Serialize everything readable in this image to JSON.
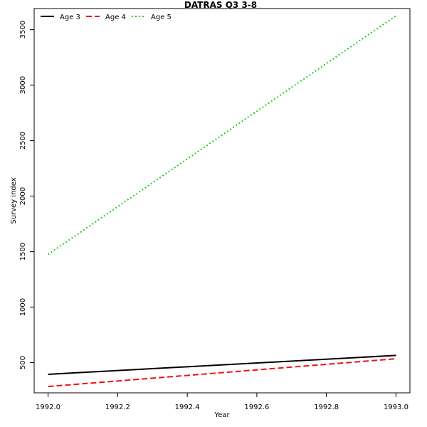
{
  "chart_data": {
    "type": "line",
    "title": "DATRAS Q3 3-8",
    "xlabel": "Year",
    "ylabel": "Survey index",
    "xlim": [
      1991.96,
      1993.04
    ],
    "ylim": [
      228,
      3690
    ],
    "xticks": [
      "1992.0",
      "1992.2",
      "1992.4",
      "1992.6",
      "1992.8",
      "1993.0"
    ],
    "yticks": [
      "500",
      "1000",
      "1500",
      "2000",
      "2500",
      "3000",
      "3500"
    ],
    "x": [
      1992.0,
      1993.0
    ],
    "series": [
      {
        "name": "Age 3",
        "values": [
          395,
          565
        ],
        "color": "#000000",
        "dash": "solid"
      },
      {
        "name": "Age 4",
        "values": [
          285,
          535
        ],
        "color": "#ee1111",
        "dash": "dashed"
      },
      {
        "name": "Age 5",
        "values": [
          1475,
          3625
        ],
        "color": "#22cc22",
        "dash": "dotted"
      }
    ],
    "legend": "top-left",
    "grid": false
  }
}
